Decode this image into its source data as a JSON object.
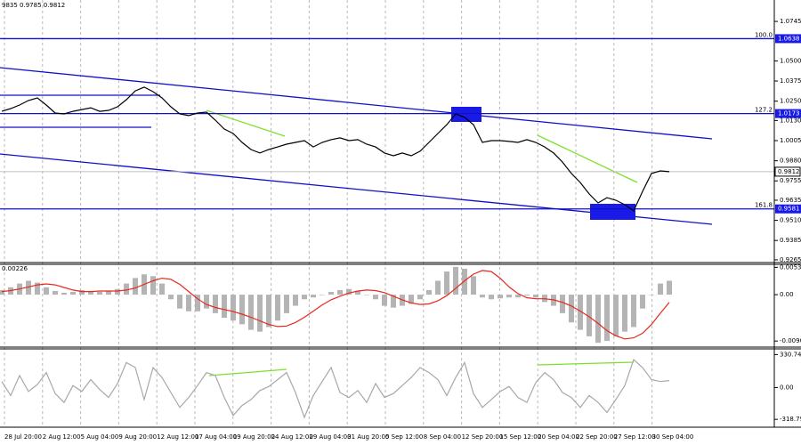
{
  "chart_data": {
    "type": "line",
    "header": "9835 0.9785 0.9812",
    "x_labels": [
      "28 Jul 20:00",
      "2 Aug 12:00",
      "5 Aug 04:00",
      "9 Aug 20:00",
      "12 Aug 12:00",
      "17 Aug 04:00",
      "19 Aug 20:00",
      "24 Aug 12:00",
      "29 Aug 04:00",
      "31 Aug 20:00",
      "5 Sep 12:00",
      "8 Sep 04:00",
      "12 Sep 20:00",
      "15 Sep 12:00",
      "20 Sep 04:00",
      "22 Sep 20:00",
      "27 Sep 12:00",
      "30 Sep 04:00"
    ],
    "ylim": [
      0.9248,
      1.0878
    ],
    "yticks": [
      1.0745,
      {
        "value": 1.05,
        "label": "1.0500"
      },
      1.0375,
      {
        "value": 1.025,
        "label": "1.0250"
      },
      {
        "value": 1.013,
        "label": "1.0130"
      },
      1.0005,
      {
        "value": 0.988,
        "label": "0.9880"
      },
      0.9755,
      0.9635,
      {
        "value": 0.951,
        "label": "0.9510"
      },
      0.9385,
      0.9265
    ],
    "levels": [
      {
        "value": 1.0638,
        "fib": "100.0"
      },
      {
        "value": 1.0173,
        "fib": "127.2"
      },
      {
        "value": 0.9581,
        "fib": "161.8"
      }
    ],
    "last_price": 0.9812,
    "series": [
      {
        "color": "#000000",
        "values": [
          1.0187,
          1.0204,
          1.0226,
          1.0254,
          1.027,
          1.0226,
          1.0176,
          1.0171,
          1.0187,
          1.0198,
          1.0209,
          1.0187,
          1.0193,
          1.0215,
          1.0259,
          1.0314,
          1.0337,
          1.0309,
          1.027,
          1.0215,
          1.0171,
          1.016,
          1.0176,
          1.0182,
          1.0132,
          1.0077,
          1.0049,
          0.9994,
          0.995,
          0.9928,
          0.995,
          0.9966,
          0.9983,
          0.9994,
          1.0005,
          0.9966,
          0.9994,
          1.0011,
          1.0022,
          1.0005,
          1.0011,
          0.9983,
          0.9966,
          0.9928,
          0.9911,
          0.9928,
          0.9911,
          0.9939,
          0.9994,
          1.0049,
          1.0104,
          1.0171,
          1.0149,
          1.0104,
          0.9994,
          1.0005,
          1.0005,
          1.0,
          0.9994,
          1.0011,
          0.9994,
          0.9966,
          0.9928,
          0.9872,
          0.9801,
          0.9745,
          0.9674,
          0.9618,
          0.9651,
          0.9635,
          0.9607,
          0.9569,
          0.969,
          0.9801,
          0.9817,
          0.9812
        ]
      }
    ],
    "macd": {
      "current": "0.00226",
      "ylim": [
        -0.0102,
        0.0059
      ],
      "yticks": [
        0.00532,
        {
          "value": 0,
          "label": "0.00"
        },
        -0.00902
      ],
      "histogram": {
        "color": "#b4b4b4",
        "values": [
          0.0009,
          0.00144,
          0.00216,
          0.0027,
          0.00234,
          0.00144,
          0.00072,
          0.00036,
          0.00054,
          0.0009,
          0.00072,
          0.00054,
          0.00072,
          0.00108,
          0.00216,
          0.00324,
          0.00396,
          0.0036,
          0.00216,
          -0.0009,
          -0.0027,
          -0.00324,
          -0.00324,
          -0.0027,
          -0.0036,
          -0.0045,
          -0.00504,
          -0.00576,
          -0.00684,
          -0.0072,
          -0.0063,
          -0.00504,
          -0.0036,
          -0.00216,
          -0.0009,
          -0.00054,
          0,
          0.00054,
          0.0009,
          0.00108,
          0.00072,
          0,
          -0.0009,
          -0.00216,
          -0.00252,
          -0.00216,
          -0.0018,
          -0.0009,
          0.0009,
          0.0027,
          0.0045,
          0.0054,
          0.00504,
          0.0036,
          -0.00054,
          -0.0009,
          -0.00072,
          -0.00054,
          -0.00054,
          -0.00018,
          -0.00054,
          -0.00144,
          -0.00216,
          -0.0036,
          -0.0054,
          -0.00684,
          -0.0081,
          -0.00936,
          -0.009,
          -0.0081,
          -0.0072,
          -0.0063,
          -0.0027,
          0,
          0.00216,
          0.0027
        ]
      },
      "signal": {
        "color": "#e8281e",
        "values": [
          0.0006,
          0.0008,
          0.0011,
          0.0015,
          0.0019,
          0.0021,
          0.0019,
          0.0014,
          0.0009,
          0.0006,
          0.0006,
          0.0007,
          0.0007,
          0.0007,
          0.0009,
          0.0013,
          0.002,
          0.0027,
          0.0032,
          0.003,
          0.002,
          0.0006,
          -0.0008,
          -0.0019,
          -0.0025,
          -0.0029,
          -0.0033,
          -0.0038,
          -0.0044,
          -0.0051,
          -0.0058,
          -0.0062,
          -0.0061,
          -0.0054,
          -0.0044,
          -0.0032,
          -0.002,
          -0.001,
          -0.0003,
          0.0003,
          0.0007,
          0.0009,
          0.0008,
          0.0004,
          -0.0003,
          -0.001,
          -0.0016,
          -0.0019,
          -0.0018,
          -0.0012,
          -0.0002,
          0.0012,
          0.0027,
          0.004,
          0.0047,
          0.0045,
          0.0032,
          0.0015,
          0.0002,
          -0.0006,
          -0.0008,
          -0.0008,
          -0.001,
          -0.0015,
          -0.0022,
          -0.0032,
          -0.0043,
          -0.0056,
          -0.007,
          -0.008,
          -0.0086,
          -0.0084,
          -0.0075,
          -0.0058,
          -0.0036,
          -0.0015
        ]
      }
    },
    "cci": {
      "ylim": [
        -380,
        370
      ],
      "yticks": [
        330.7482,
        {
          "value": 0,
          "label": "0.00"
        },
        -318.798
      ],
      "color": "#a8a8a8",
      "values": [
        60,
        -80,
        120,
        -40,
        30,
        150,
        -60,
        -150,
        20,
        -40,
        80,
        -20,
        -100,
        40,
        250,
        200,
        -120,
        200,
        100,
        -50,
        -200,
        -100,
        20,
        150,
        120,
        -100,
        -280,
        -180,
        -120,
        -30,
        10,
        80,
        150,
        -50,
        -300,
        -80,
        60,
        200,
        -50,
        -100,
        -30,
        -150,
        40,
        -100,
        -60,
        20,
        100,
        200,
        150,
        80,
        -80,
        100,
        250,
        -60,
        -200,
        -120,
        -40,
        10,
        -100,
        -150,
        50,
        150,
        80,
        -50,
        -100,
        -200,
        -80,
        -150,
        -250,
        -120,
        20,
        280,
        200,
        80,
        60,
        70
      ]
    }
  }
}
